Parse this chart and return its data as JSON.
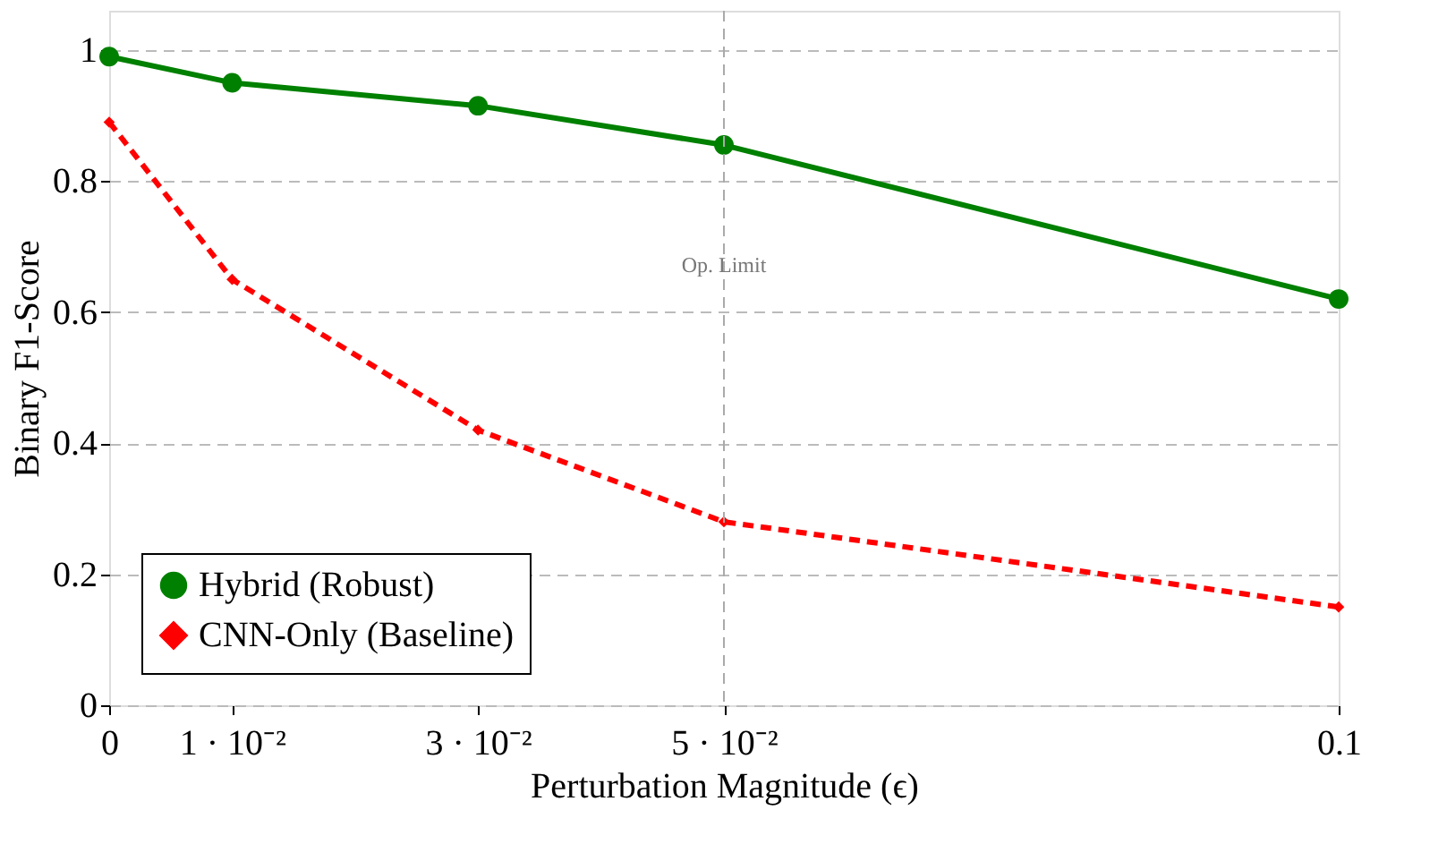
{
  "chart_data": {
    "type": "line",
    "xlabel": "Perturbation Magnitude (ϵ)",
    "ylabel": "Binary F1-Score",
    "x": [
      0,
      0.01,
      0.03,
      0.05,
      0.1
    ],
    "series": [
      {
        "name": "Hybrid (Robust)",
        "color": "#008000",
        "values": [
          0.99,
          0.95,
          0.915,
          0.855,
          0.62
        ],
        "marker": "circle",
        "line_style": "solid"
      },
      {
        "name": "CNN-Only (Baseline)",
        "color": "#ff0000",
        "values": [
          0.89,
          0.65,
          0.42,
          0.28,
          0.15
        ],
        "marker": "diamond",
        "line_style": "dashed"
      }
    ],
    "xlim": [
      0,
      0.1
    ],
    "ylim": [
      0,
      1.06
    ],
    "xticks": [
      0,
      {
        "value": 0.01,
        "label": "1 · 10⁻²"
      },
      {
        "value": 0.03,
        "label": "3 · 10⁻²"
      },
      {
        "value": 0.05,
        "label": "5 · 10⁻²"
      },
      0.1
    ],
    "yticks": [
      0,
      0.2,
      0.4,
      0.6,
      0.8,
      1
    ],
    "ref_lines": [
      {
        "axis": "x",
        "value": 0.05,
        "label": "Op. Limit",
        "color": "#aaaaaa",
        "line_style": "dashed"
      }
    ],
    "grid": "y",
    "legend": "bottom left"
  }
}
